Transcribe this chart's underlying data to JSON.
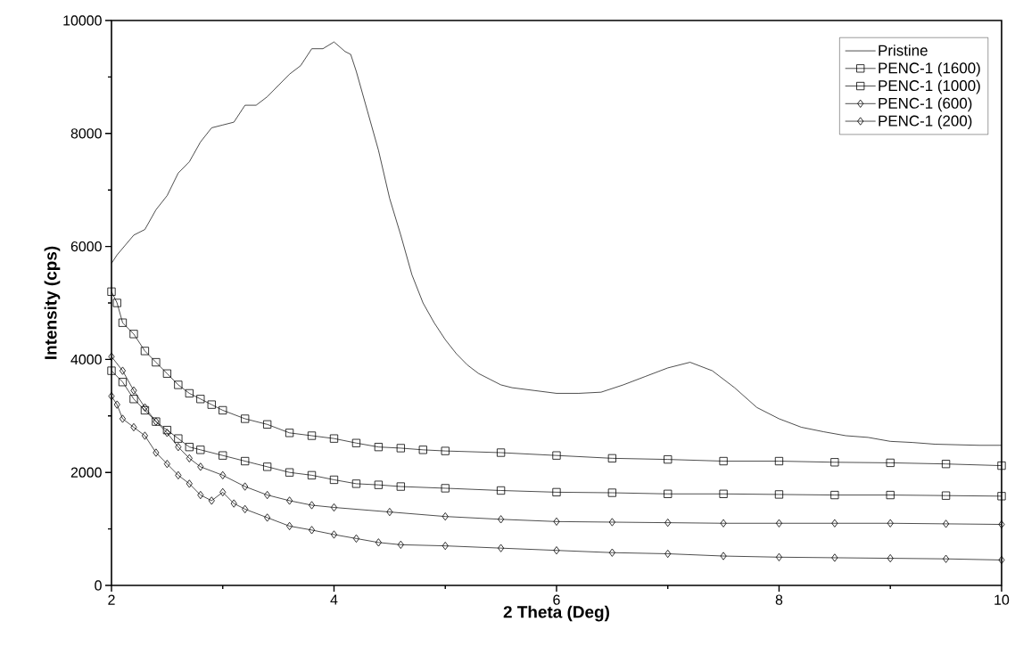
{
  "chart_data": {
    "type": "line",
    "xlabel": "2 Theta (Deg)",
    "ylabel": "Intensity (cps)",
    "xlim": [
      2,
      10
    ],
    "ylim": [
      0,
      10000
    ],
    "xticks": [
      2,
      4,
      6,
      8,
      10
    ],
    "yticks": [
      0,
      2000,
      4000,
      6000,
      8000,
      10000
    ],
    "grid": false,
    "legend": "top right",
    "series": [
      {
        "name": "Pristine",
        "color": "#000000",
        "marker": "none",
        "x": [
          2,
          2.05,
          2.2,
          2.3,
          2.4,
          2.5,
          2.6,
          2.7,
          2.8,
          2.9,
          3.0,
          3.1,
          3.2,
          3.3,
          3.4,
          3.5,
          3.6,
          3.7,
          3.8,
          3.9,
          4.0,
          4.1,
          4.15,
          4.2,
          4.3,
          4.4,
          4.5,
          4.6,
          4.7,
          4.8,
          4.9,
          5.0,
          5.1,
          5.2,
          5.3,
          5.4,
          5.5,
          5.6,
          5.8,
          6.0,
          6.2,
          6.4,
          6.6,
          6.8,
          7.0,
          7.2,
          7.4,
          7.6,
          7.8,
          8.0,
          8.2,
          8.4,
          8.6,
          8.8,
          9.0,
          9.2,
          9.4,
          9.6,
          9.8,
          10.0
        ],
        "values": [
          5700,
          5850,
          6200,
          6300,
          6650,
          6900,
          7300,
          7500,
          7850,
          8100,
          8150,
          8200,
          8500,
          8500,
          8650,
          8850,
          9050,
          9200,
          9500,
          9500,
          9620,
          9450,
          9400,
          9100,
          8400,
          7700,
          6850,
          6200,
          5500,
          5000,
          4650,
          4350,
          4100,
          3900,
          3750,
          3650,
          3550,
          3500,
          3450,
          3400,
          3400,
          3420,
          3550,
          3700,
          3850,
          3950,
          3800,
          3500,
          3150,
          2950,
          2800,
          2720,
          2650,
          2620,
          2550,
          2530,
          2500,
          2490,
          2480,
          2480
        ]
      },
      {
        "name": "PENC-1 (1600)",
        "color": "#000000",
        "marker": "square",
        "x": [
          2,
          2.05,
          2.1,
          2.2,
          2.3,
          2.4,
          2.5,
          2.6,
          2.7,
          2.8,
          2.9,
          3.0,
          3.2,
          3.4,
          3.6,
          3.8,
          4.0,
          4.2,
          4.4,
          4.6,
          4.8,
          5.0,
          5.5,
          6.0,
          6.5,
          7.0,
          7.5,
          8.0,
          8.5,
          9.0,
          9.5,
          10
        ],
        "values": [
          5200,
          5000,
          4650,
          4450,
          4150,
          3950,
          3750,
          3550,
          3400,
          3300,
          3200,
          3100,
          2950,
          2850,
          2700,
          2650,
          2600,
          2520,
          2450,
          2430,
          2400,
          2380,
          2350,
          2300,
          2250,
          2230,
          2200,
          2200,
          2180,
          2170,
          2150,
          2120
        ]
      },
      {
        "name": "PENC-1 (1000)",
        "color": "#000000",
        "marker": "square",
        "x": [
          2,
          2.1,
          2.2,
          2.3,
          2.4,
          2.5,
          2.6,
          2.7,
          2.8,
          3.0,
          3.2,
          3.4,
          3.6,
          3.8,
          4.0,
          4.2,
          4.4,
          4.6,
          5.0,
          5.5,
          6.0,
          6.5,
          7.0,
          7.5,
          8.0,
          8.5,
          9.0,
          9.5,
          10
        ],
        "values": [
          3800,
          3600,
          3300,
          3100,
          2900,
          2750,
          2600,
          2450,
          2400,
          2300,
          2200,
          2100,
          2000,
          1950,
          1870,
          1800,
          1780,
          1750,
          1720,
          1680,
          1650,
          1640,
          1620,
          1620,
          1610,
          1600,
          1600,
          1590,
          1580
        ]
      },
      {
        "name": "PENC-1 (600)",
        "color": "#000000",
        "marker": "diamond",
        "x": [
          2,
          2.1,
          2.2,
          2.3,
          2.4,
          2.5,
          2.6,
          2.7,
          2.8,
          3.0,
          3.2,
          3.4,
          3.6,
          3.8,
          4.0,
          4.5,
          5.0,
          5.5,
          6.0,
          6.5,
          7.0,
          7.5,
          8.0,
          8.5,
          9.0,
          9.5,
          10
        ],
        "values": [
          4050,
          3800,
          3450,
          3150,
          2900,
          2700,
          2450,
          2250,
          2100,
          1950,
          1750,
          1600,
          1500,
          1420,
          1380,
          1300,
          1220,
          1170,
          1130,
          1120,
          1110,
          1100,
          1100,
          1100,
          1100,
          1090,
          1080
        ]
      },
      {
        "name": "PENC-1 (200)",
        "color": "#000000",
        "marker": "diamond",
        "x": [
          2,
          2.05,
          2.1,
          2.2,
          2.3,
          2.4,
          2.5,
          2.6,
          2.7,
          2.8,
          2.9,
          3.0,
          3.1,
          3.2,
          3.4,
          3.6,
          3.8,
          4.0,
          4.2,
          4.4,
          4.6,
          5.0,
          5.5,
          6.0,
          6.5,
          7.0,
          7.5,
          8.0,
          8.5,
          9.0,
          9.5,
          10
        ],
        "values": [
          3350,
          3200,
          2950,
          2800,
          2650,
          2350,
          2150,
          1950,
          1800,
          1600,
          1500,
          1650,
          1450,
          1350,
          1200,
          1050,
          980,
          900,
          830,
          760,
          720,
          700,
          660,
          620,
          580,
          560,
          520,
          500,
          490,
          480,
          470,
          450
        ]
      }
    ]
  }
}
